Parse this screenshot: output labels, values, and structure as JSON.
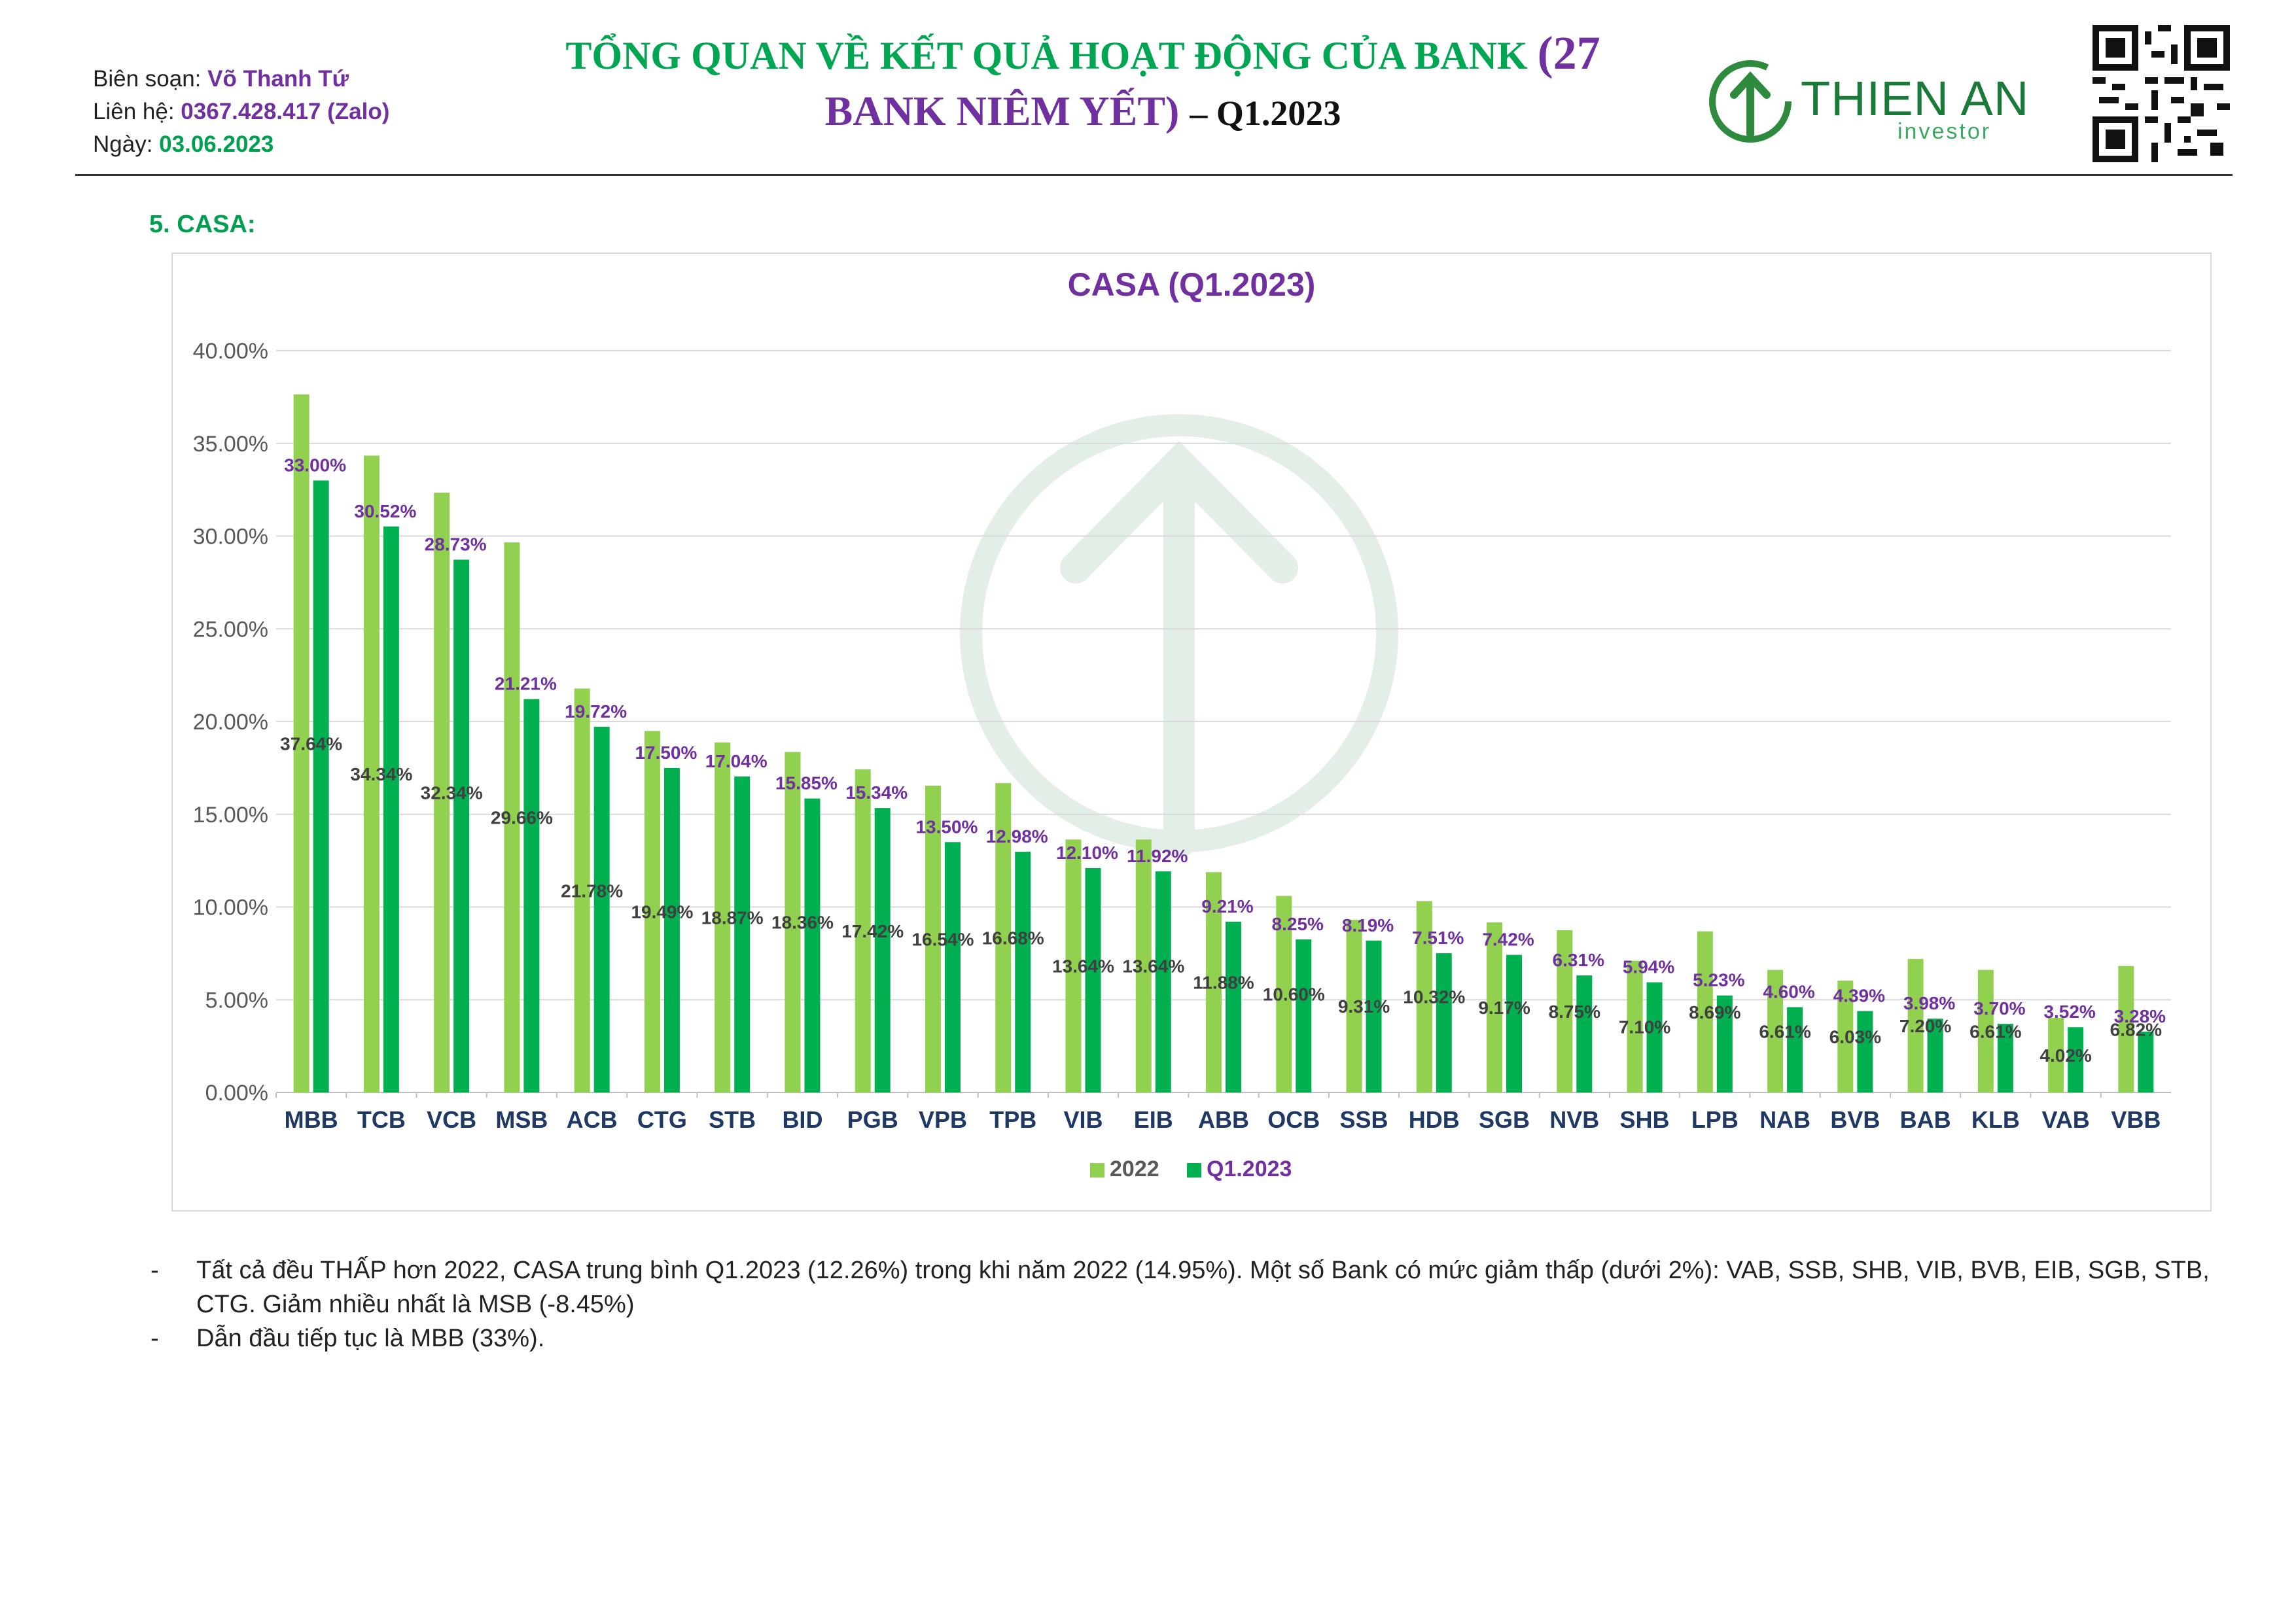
{
  "meta": {
    "author_label": "Biên soạn:",
    "author_value": "Võ Thanh Tứ",
    "contact_label": "Liên hệ:",
    "contact_value": "0367.428.417 (Zalo)",
    "date_label": "Ngày:",
    "date_value": "03.06.2023"
  },
  "header": {
    "title_line1": "TỔNG QUAN VỀ KẾT QUẢ HOẠT ĐỘNG CỦA BANK",
    "title_line1_suffix": "(27",
    "title_line2": "BANK NIÊM YẾT)",
    "title_line2_suffix": "– Q1.2023"
  },
  "logo": {
    "name": "THIEN AN",
    "tagline": "investor"
  },
  "section": {
    "label": "5.   CASA:"
  },
  "colors": {
    "series_2022": "#92d050",
    "series_q1": "#00b050",
    "purple": "#7030a0",
    "grid": "#d9d9d9"
  },
  "chart_data": {
    "type": "bar",
    "title": "CASA (Q1.2023)",
    "xlabel": "",
    "ylabel": "",
    "ylim": [
      0,
      40
    ],
    "yticks": [
      "0.00%",
      "5.00%",
      "10.00%",
      "15.00%",
      "20.00%",
      "25.00%",
      "30.00%",
      "35.00%",
      "40.00%"
    ],
    "grid": "horizontal",
    "legend": "bottom-center",
    "categories": [
      "MBB",
      "TCB",
      "VCB",
      "MSB",
      "ACB",
      "CTG",
      "STB",
      "BID",
      "PGB",
      "VPB",
      "TPB",
      "VIB",
      "EIB",
      "ABB",
      "OCB",
      "SSB",
      "HDB",
      "SGB",
      "NVB",
      "SHB",
      "LPB",
      "NAB",
      "BVB",
      "BAB",
      "KLB",
      "VAB",
      "VBB"
    ],
    "series": [
      {
        "name": "2022",
        "values": [
          37.64,
          34.34,
          32.34,
          29.66,
          21.78,
          19.49,
          18.87,
          18.36,
          17.42,
          16.54,
          16.68,
          13.64,
          13.64,
          11.88,
          10.6,
          9.31,
          10.32,
          9.17,
          8.75,
          7.1,
          8.69,
          6.61,
          6.03,
          7.2,
          6.61,
          4.02,
          6.82
        ],
        "labels": [
          "37.64%",
          "34.34%",
          "32.34%",
          "29.66%",
          "21.78%",
          "19.49%",
          "18.87%",
          "18.36%",
          "17.42%",
          "16.54%",
          "16.68%",
          "13.64%",
          "13.64%",
          "11.88%",
          "10.60%",
          "9.31%",
          "10.32%",
          "9.17%",
          "8.75%",
          "7.10%",
          "8.69%",
          "6.61%",
          "6.03%",
          "7.20%",
          "6.61%",
          "4.02%",
          "6.82%"
        ]
      },
      {
        "name": "Q1.2023",
        "values": [
          33.0,
          30.52,
          28.73,
          21.21,
          19.72,
          17.5,
          17.04,
          15.85,
          15.34,
          13.5,
          12.98,
          12.1,
          11.92,
          9.21,
          8.25,
          8.19,
          7.51,
          7.42,
          6.31,
          5.94,
          5.23,
          4.6,
          4.39,
          3.98,
          3.7,
          3.52,
          3.28
        ],
        "labels": [
          "33.00%",
          "30.52%",
          "28.73%",
          "21.21%",
          "19.72%",
          "17.50%",
          "17.04%",
          "15.85%",
          "15.34%",
          "13.50%",
          "12.98%",
          "12.10%",
          "11.92%",
          "9.21%",
          "8.25%",
          "8.19%",
          "7.51%",
          "7.42%",
          "6.31%",
          "5.94%",
          "5.23%",
          "4.60%",
          "4.39%",
          "3.98%",
          "3.70%",
          "3.52%",
          "3.28%"
        ]
      }
    ]
  },
  "notes": [
    "Tất cả đều THẤP hơn 2022, CASA trung bình Q1.2023 (12.26%) trong khi năm 2022 (14.95%). Một số Bank có mức giảm thấp (dưới 2%): VAB, SSB, SHB, VIB, BVB, EIB, SGB, STB, CTG. Giảm nhiều nhất là MSB (-8.45%)",
    "Dẫn đầu tiếp tục là MBB (33%)."
  ],
  "bullet_char": "-"
}
